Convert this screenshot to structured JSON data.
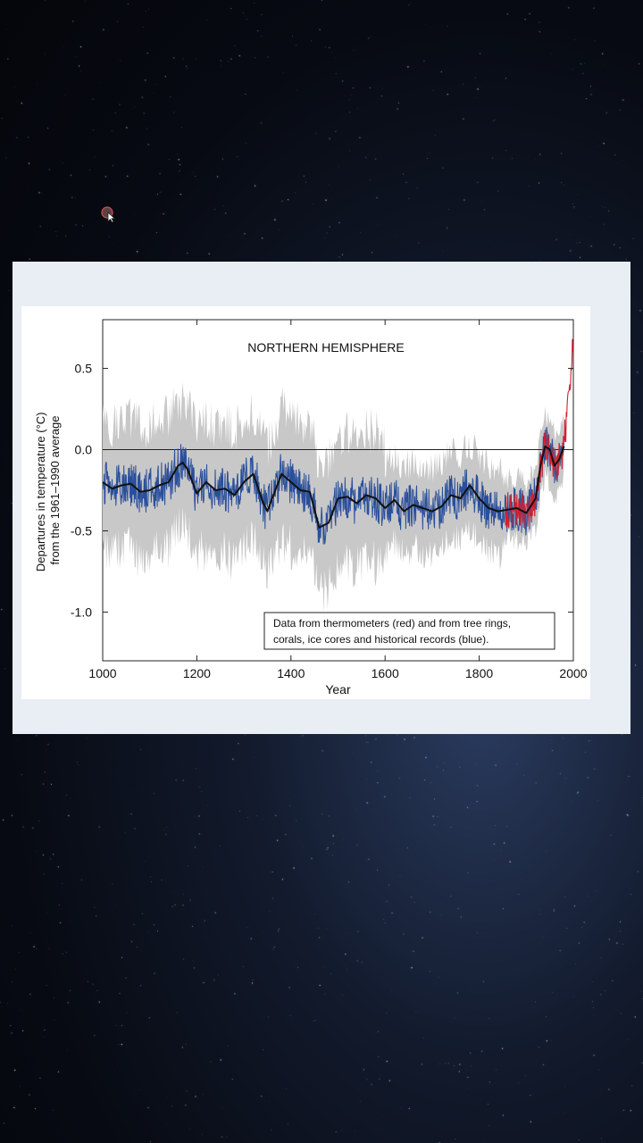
{
  "background": {
    "theme": "starfield",
    "colors": {
      "deep": "#04060b",
      "glow": "#2a3b5e"
    }
  },
  "slide": {
    "background": "#e8eef4"
  },
  "chart_data": {
    "type": "line",
    "title": "NORTHERN HEMISPHERE",
    "xlabel": "Year",
    "ylabel": "Departures in temperature (°C)\nfrom the 1961–1990 average",
    "ylabel_lines": [
      "Departures in temperature (°C)",
      "from the 1961–1990 average"
    ],
    "xlim": [
      1000,
      2000
    ],
    "ylim": [
      -1.3,
      0.8
    ],
    "x_ticks": [
      1000,
      1200,
      1400,
      1600,
      1800,
      2000
    ],
    "x_tick_labels": [
      "1000",
      "1200",
      "1400",
      "1600",
      "1800",
      "2000"
    ],
    "y_ticks": [
      0.5,
      0.0,
      -0.5,
      -1.0
    ],
    "y_tick_labels": [
      "0.5",
      "0.0",
      "-0.5",
      "-1.0"
    ],
    "reference_line": 0.0,
    "annotation_lines": [
      "Data from thermometers (red) and from tree rings,",
      "corals, ice cores and historical records (blue)."
    ],
    "series": [
      {
        "role": "smoothed reconstruction (black)",
        "color": "#111111",
        "x": [
          1000,
          1020,
          1040,
          1060,
          1080,
          1100,
          1120,
          1140,
          1160,
          1170,
          1180,
          1200,
          1220,
          1240,
          1260,
          1280,
          1300,
          1320,
          1340,
          1350,
          1360,
          1380,
          1400,
          1420,
          1440,
          1460,
          1480,
          1500,
          1520,
          1540,
          1560,
          1580,
          1600,
          1620,
          1640,
          1660,
          1680,
          1700,
          1720,
          1740,
          1760,
          1780,
          1800,
          1820,
          1840,
          1860,
          1880,
          1900,
          1920,
          1930,
          1940,
          1950,
          1960,
          1970,
          1980
        ],
        "y": [
          -0.2,
          -0.24,
          -0.22,
          -0.21,
          -0.26,
          -0.25,
          -0.22,
          -0.2,
          -0.1,
          -0.08,
          -0.12,
          -0.27,
          -0.2,
          -0.25,
          -0.24,
          -0.28,
          -0.2,
          -0.15,
          -0.32,
          -0.38,
          -0.3,
          -0.15,
          -0.2,
          -0.25,
          -0.26,
          -0.48,
          -0.45,
          -0.3,
          -0.29,
          -0.33,
          -0.28,
          -0.3,
          -0.36,
          -0.31,
          -0.38,
          -0.34,
          -0.36,
          -0.38,
          -0.35,
          -0.28,
          -0.3,
          -0.22,
          -0.3,
          -0.36,
          -0.38,
          -0.37,
          -0.36,
          -0.39,
          -0.3,
          -0.1,
          0.02,
          0.0,
          -0.1,
          -0.06,
          0.02
        ]
      },
      {
        "role": "tree rings, corals, ice cores and historical records",
        "color": "#2a4f9a",
        "x_range": [
          1000,
          1980
        ]
      },
      {
        "role": "thermometers",
        "color": "#d02030",
        "x_range": [
          1856,
          1999
        ],
        "end_value": 0.65
      },
      {
        "role": "uncertainty range",
        "color": "#c8c8c8",
        "x_range": [
          1000,
          1980
        ]
      }
    ]
  }
}
